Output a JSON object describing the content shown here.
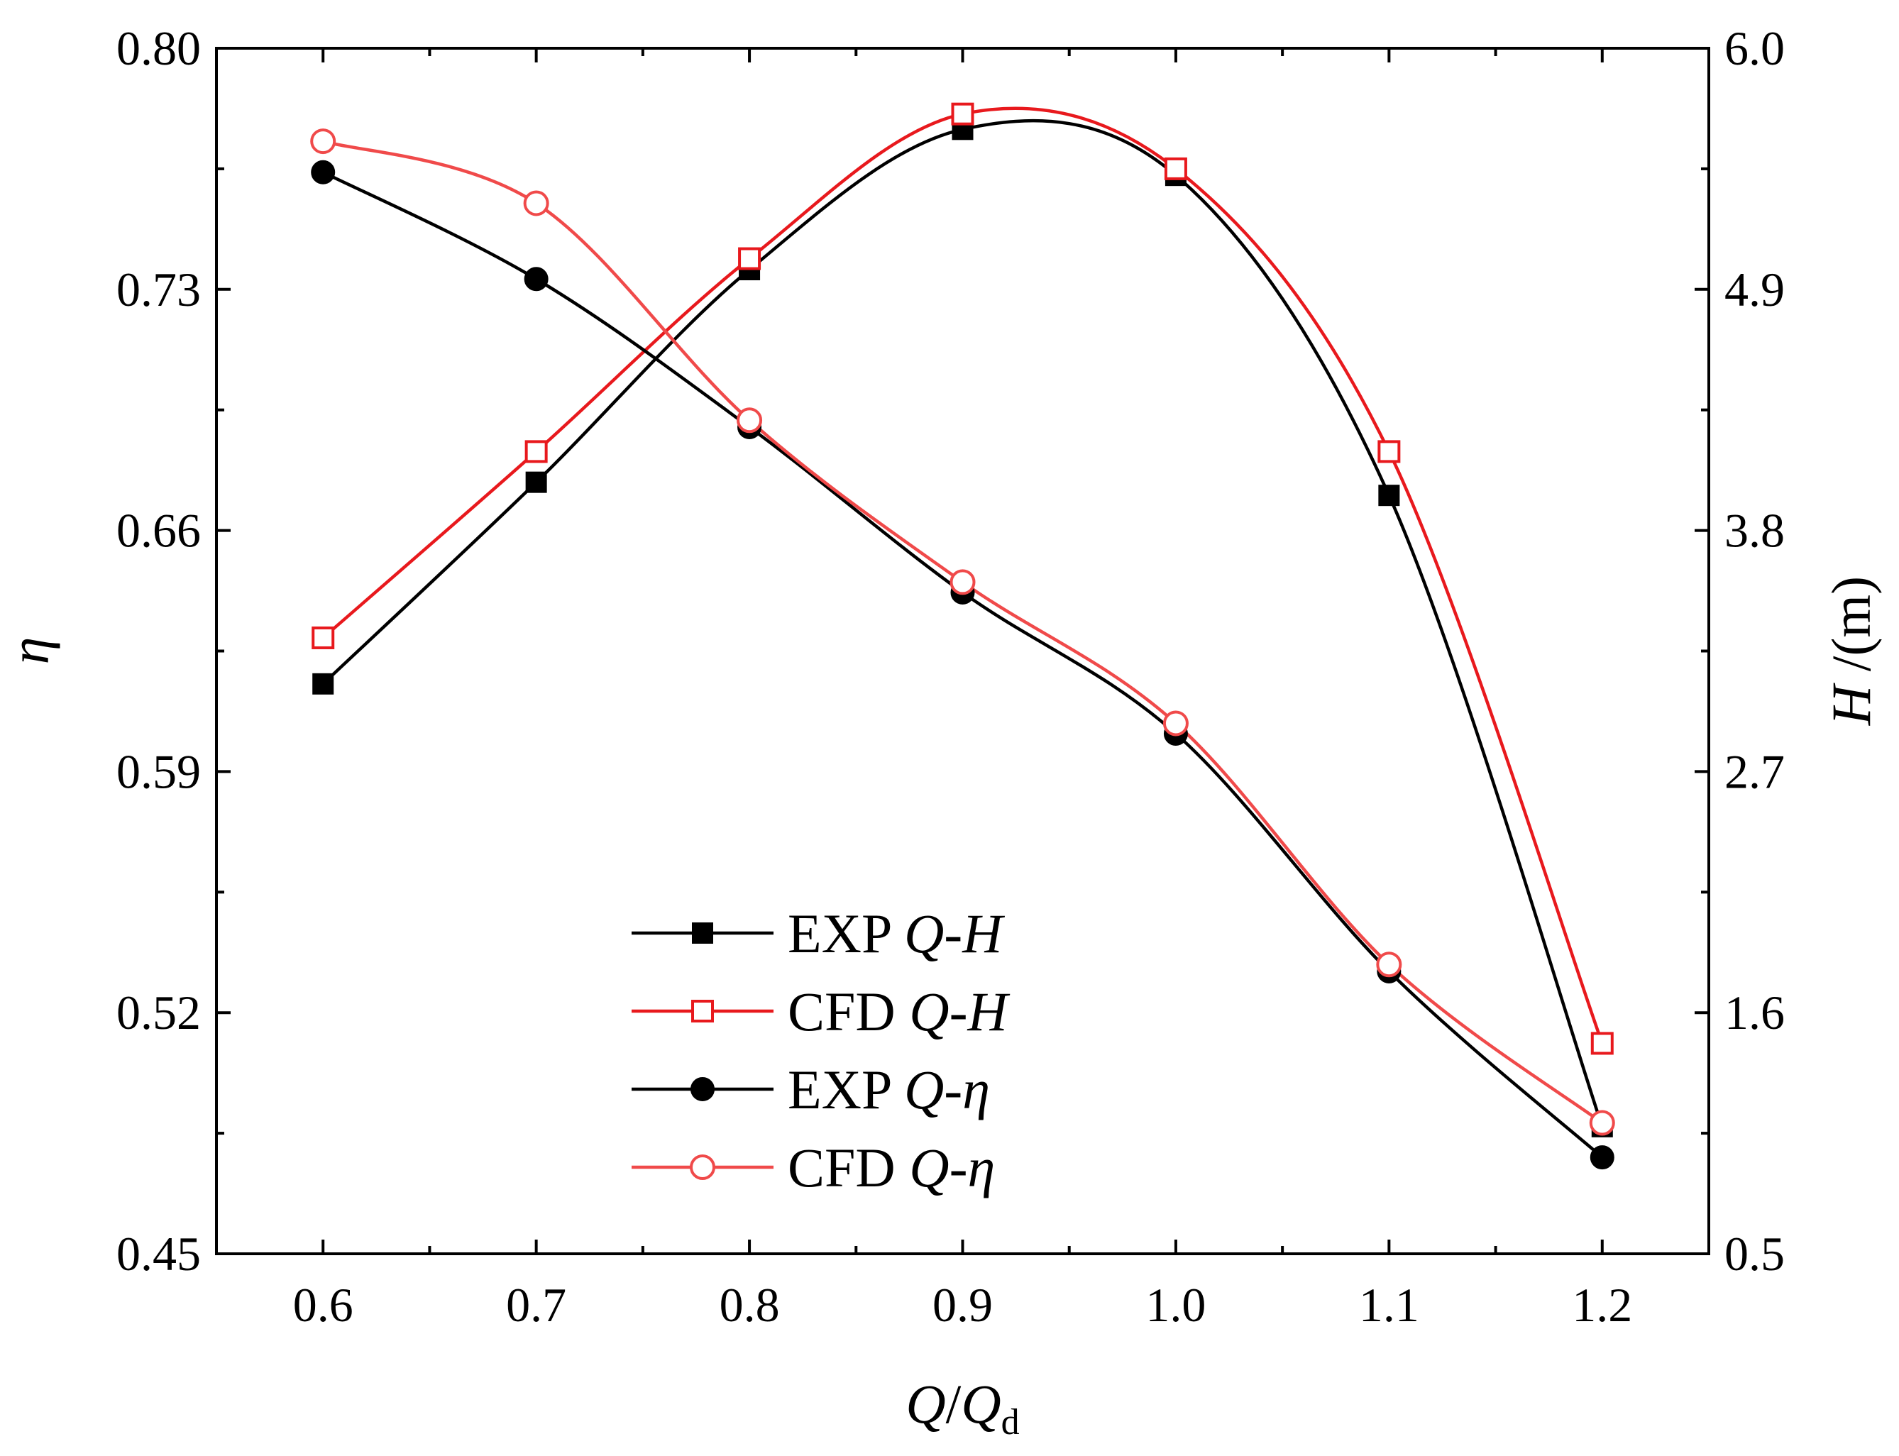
{
  "chart_data": {
    "type": "line",
    "title": "",
    "xlabel": "Q/Qd",
    "xlabel_parts": {
      "base": "Q",
      "slash": "/",
      "denom": "Q",
      "sub": "d"
    },
    "ylabel_left": "η",
    "ylabel_right": "H /(m)",
    "ylabel_right_parts": {
      "var": "H",
      "unit": " /(m)"
    },
    "x_ticks": [
      "0.6",
      "0.7",
      "0.8",
      "0.9",
      "1.0",
      "1.1",
      "1.2"
    ],
    "y_left_ticks": [
      "0.45",
      "0.52",
      "0.59",
      "0.66",
      "0.73",
      "0.80"
    ],
    "y_right_ticks": [
      "0.5",
      "1.6",
      "2.7",
      "3.8",
      "4.9",
      "6.0"
    ],
    "xlim": [
      0.55,
      1.25
    ],
    "ylim_left": [
      0.45,
      0.8
    ],
    "ylim_right": [
      0.5,
      6.0
    ],
    "grid": false,
    "legend_position": "lower-center",
    "x": [
      0.6,
      0.7,
      0.8,
      0.9,
      1.0,
      1.1,
      1.2
    ],
    "series": [
      {
        "name": "EXP Q-H",
        "label_main": "EXP ",
        "label_var": "Q-H",
        "axis": "right",
        "marker": "square-filled",
        "color": "#000000",
        "values": [
          3.1,
          4.02,
          4.99,
          5.63,
          5.42,
          3.96,
          1.08
        ]
      },
      {
        "name": "CFD Q-H",
        "label_main": "CFD ",
        "label_var": "Q-H",
        "axis": "right",
        "marker": "square-open",
        "color": "#e8191d",
        "values": [
          3.31,
          4.16,
          5.04,
          5.7,
          5.45,
          4.16,
          1.46
        ]
      },
      {
        "name": "EXP Q-η",
        "label_main": "EXP ",
        "label_var": "Q-η",
        "axis": "left",
        "marker": "circle-filled",
        "color": "#000000",
        "values": [
          0.764,
          0.733,
          0.69,
          0.642,
          0.601,
          0.532,
          0.478
        ]
      },
      {
        "name": "CFD Q-η",
        "label_main": "CFD ",
        "label_var": "Q-η",
        "axis": "left",
        "marker": "circle-open",
        "color": "#f04a4a",
        "values": [
          0.773,
          0.755,
          0.692,
          0.645,
          0.604,
          0.534,
          0.488
        ]
      }
    ]
  }
}
